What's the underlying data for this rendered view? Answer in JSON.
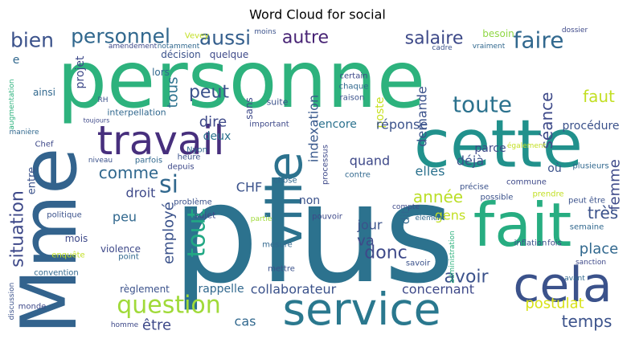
{
  "chart_data": {
    "type": "wordcloud",
    "title": "Word Cloud for social",
    "words": [
      "personne",
      "plus",
      "cette",
      "Mme",
      "service",
      "fait",
      "cela",
      "travail",
      "ville",
      "question",
      "situation",
      "bien",
      "personnel",
      "aussi",
      "autre",
      "salaire",
      "faire",
      "besoin",
      "e",
      "toute",
      "peut",
      "tous",
      "dire",
      "deux",
      "sans",
      "indexation",
      "poste",
      "demande",
      "faut",
      "séance",
      "femme",
      "si",
      "comme",
      "employé",
      "tout",
      "droit",
      "CHF",
      "peu",
      "année",
      "donc",
      "très",
      "place",
      "avoir",
      "temps",
      "postulat",
      "être",
      "cas",
      "collaborateur",
      "rappelle",
      "concernant",
      "règlement",
      "réponse",
      "encore",
      "procédure",
      "quand",
      "elles",
      "déjà",
      "parce",
      "où",
      "gens",
      "jour",
      "va",
      "dit",
      "non",
      "quelque",
      "lors",
      "décision",
      "projet",
      "ainsi",
      "augmentation",
      "Chef",
      "entre",
      "mois",
      "convention",
      "discussion",
      "monde",
      "enquête",
      "politique",
      "violence",
      "point",
      "problème",
      "sujet",
      "mesure",
      "mettre",
      "partie",
      "pouvoir",
      "chose",
      "suite",
      "certain",
      "chaque",
      "raison",
      "important",
      "Nyon",
      "heure",
      "depuis",
      "parfois",
      "niveau",
      "interpellation",
      "toujours",
      "RH",
      "processus",
      "contre",
      "possible",
      "commune",
      "plusieurs",
      "peut être",
      "prendre",
      "fois",
      "semaine",
      "inflation",
      "sanction",
      "avant",
      "précise",
      "également",
      "compte",
      "élément",
      "savoir",
      "administration",
      "Vevey",
      "amendement",
      "notamment",
      "moins",
      "dossier",
      "vraiment",
      "cadre",
      "homme",
      "manière"
    ]
  }
}
